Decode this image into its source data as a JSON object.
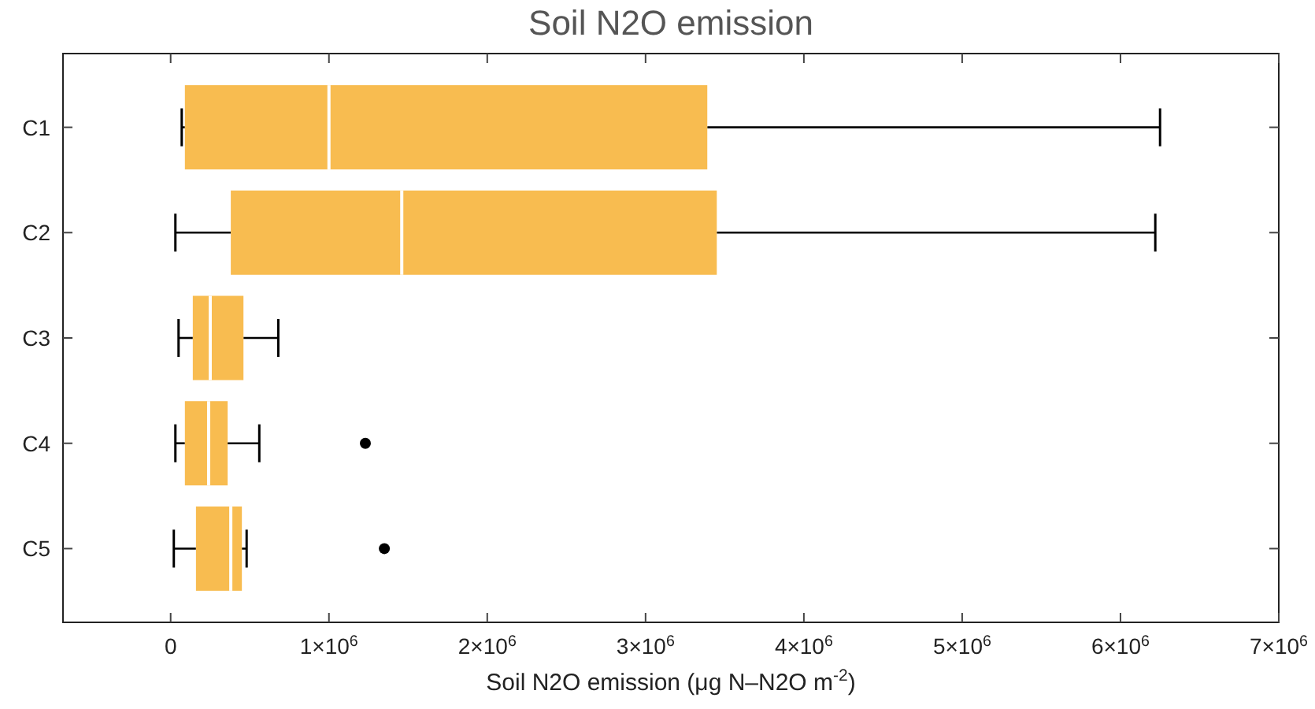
{
  "chart_data": {
    "type": "box",
    "title": "Soil N2O emission",
    "xlabel": "Soil N2O emission (μg N–N2O m$^{-2}$)",
    "orientation": "horizontal",
    "categories": [
      "C1",
      "C2",
      "C3",
      "C4",
      "C5"
    ],
    "color": "#f8bc50",
    "boxes": [
      {
        "low": 70000,
        "q1": 90000,
        "median": 1000000,
        "q3": 3390000,
        "high": 6250000
      },
      {
        "low": 30000,
        "q1": 380000,
        "median": 1460000,
        "q3": 3450000,
        "high": 6220000
      },
      {
        "low": 50000,
        "q1": 140000,
        "median": 250000,
        "q3": 460000,
        "high": 680000
      },
      {
        "low": 30000,
        "q1": 90000,
        "median": 240000,
        "q3": 360000,
        "high": 560000,
        "outliers": [
          1230000
        ]
      },
      {
        "low": 20000,
        "q1": 160000,
        "median": 380000,
        "q3": 450000,
        "high": 480000,
        "outliers": [
          1350000
        ]
      }
    ],
    "xlim": [
      -680000,
      7000000
    ],
    "xticks": [
      0,
      {
        "value": 1000000,
        "label": "1×10$^{6}$"
      },
      {
        "value": 2000000,
        "label": "2×10$^{6}$"
      },
      {
        "value": 3000000,
        "label": "3×10$^{6}$"
      },
      {
        "value": 4000000,
        "label": "4×10$^{6}$"
      },
      {
        "value": 5000000,
        "label": "5×10$^{6}$"
      },
      {
        "value": 6000000,
        "label": "6×10$^{6}$"
      },
      {
        "value": 7000000,
        "label": "7×10$^{6}$"
      }
    ],
    "grid": false
  }
}
